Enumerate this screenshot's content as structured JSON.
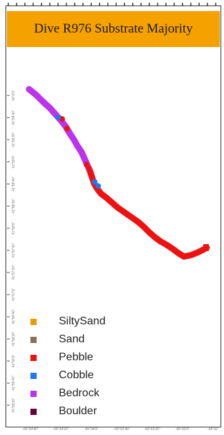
{
  "title": "Dive R976 Substrate Majority",
  "legend": [
    {
      "label": "SiltySand",
      "color": "#e59a00"
    },
    {
      "label": "Sand",
      "color": "#8b7355"
    },
    {
      "label": "Pebble",
      "color": "#ee1111"
    },
    {
      "label": "Cobble",
      "color": "#2277ee"
    },
    {
      "label": "Bedrock",
      "color": "#bb33ee"
    },
    {
      "label": "Boulder",
      "color": "#660033"
    }
  ],
  "lon_ticks": [
    "-65°34'40\"",
    "-65°34'20\"",
    "-65°34'0\"",
    "-65°33'40\"",
    "-65°33'20\"",
    "-65°33'0\"",
    "-65°32'"
  ],
  "lat_ticks": [
    "42°0'0\"",
    "41°59'40\"",
    "41°59'20\"",
    "41°59'0\"",
    "41°58'40\"",
    "41°58'20\"",
    "41°58'0\"",
    "41°57'40\"",
    "41°57'20\"",
    "41°57'0\"",
    "41°56'40\"",
    "41°56'20\"",
    "41°56'0\"",
    "41°55'40\"",
    "41°55'20\""
  ]
}
